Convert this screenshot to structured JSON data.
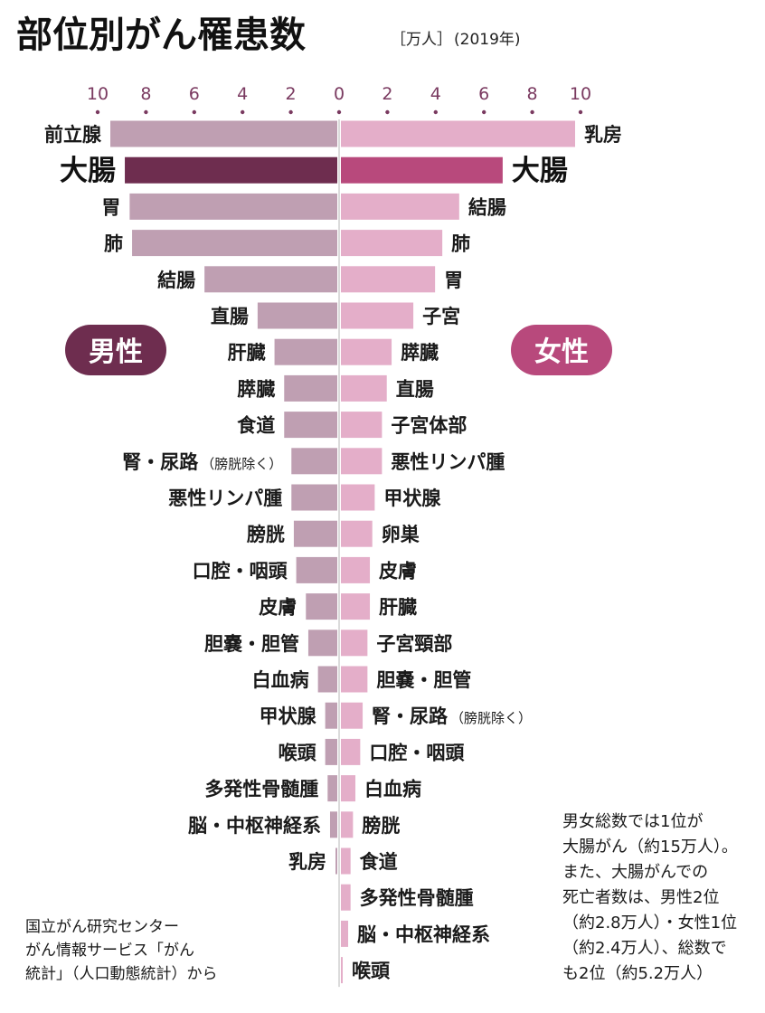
{
  "title": "部位別がん罹患数",
  "unit": "［万人］",
  "year": "(2019年)",
  "colors": {
    "male_bar": "#bf9fb2",
    "male_highlight": "#6e2d4f",
    "female_bar": "#e4aec9",
    "female_highlight": "#b8497c",
    "male_badge": "#6e2d4f",
    "female_badge": "#b8497c",
    "tick": "#7a3a60",
    "axis": "#cfcfcf"
  },
  "male_badge": "男性",
  "female_badge": "女性",
  "note_lines": [
    "男女総数では1位が",
    "大腸がん（約15万人）。",
    "また、大腸がんでの",
    "死亡者数は、男性2位",
    "（約2.8万人）・女性1位",
    "（約2.4万人）、総数で",
    "も2位（約5.2万人）"
  ],
  "source_lines": [
    "国立がん研究センター",
    "がん情報サービス「がん",
    "統計」（人口動態統計）から"
  ],
  "chart_data": {
    "type": "bar",
    "orientation": "horizontal-butterfly",
    "x_ticks": [
      10,
      8,
      6,
      4,
      2,
      0,
      2,
      4,
      6,
      8,
      10
    ],
    "xlim": [
      0,
      10
    ],
    "highlight": "大腸",
    "series": [
      {
        "name": "男性",
        "side": "left",
        "categories": [
          "前立腺",
          "大腸",
          "胃",
          "肺",
          "結腸",
          "直腸",
          "肝臓",
          "膵臓",
          "食道",
          "腎・尿路（膀胱除く）",
          "悪性リンパ腫",
          "膀胱",
          "口腔・咽頭",
          "皮膚",
          "胆嚢・胆管",
          "白血病",
          "甲状腺",
          "喉頭",
          "多発性骨髄腫",
          "脳・中枢神経系",
          "乳房"
        ],
        "values": [
          9.4,
          8.8,
          8.6,
          8.5,
          5.5,
          3.3,
          2.6,
          2.2,
          2.2,
          1.9,
          1.9,
          1.8,
          1.7,
          1.3,
          1.2,
          0.8,
          0.5,
          0.5,
          0.4,
          0.3,
          0.07
        ]
      },
      {
        "name": "女性",
        "side": "right",
        "categories": [
          "乳房",
          "大腸",
          "結腸",
          "肺",
          "胃",
          "子宮",
          "膵臓",
          "直腸",
          "子宮体部",
          "悪性リンパ腫",
          "甲状腺",
          "卵巣",
          "皮膚",
          "肝臓",
          "子宮頸部",
          "胆嚢・胆管",
          "腎・尿路（膀胱除く）",
          "口腔・咽頭",
          "白血病",
          "膀胱",
          "食道",
          "多発性骨髄腫",
          "脳・中枢神経系",
          "喉頭"
        ],
        "values": [
          9.7,
          6.7,
          4.9,
          4.2,
          3.9,
          3.0,
          2.1,
          1.9,
          1.7,
          1.7,
          1.4,
          1.3,
          1.2,
          1.2,
          1.1,
          1.1,
          0.9,
          0.8,
          0.6,
          0.5,
          0.4,
          0.4,
          0.3,
          0.04
        ]
      }
    ]
  }
}
